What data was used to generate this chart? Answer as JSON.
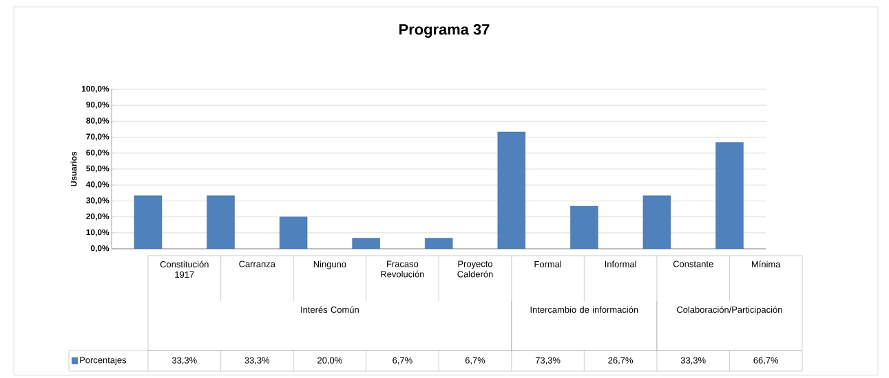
{
  "chart_data": {
    "type": "bar",
    "title": "Programa 37",
    "ylabel": "Usuarios",
    "categories": [
      "Constitución 1917",
      "Carranza",
      "Ninguno",
      "Fracaso Revolución",
      "Proyecto Calderón",
      "Formal",
      "Informal",
      "Constante",
      "Mínima"
    ],
    "series": [
      {
        "name": "Porcentajes",
        "color": "#4f81bd",
        "values": [
          33.3,
          33.3,
          20.0,
          6.7,
          6.7,
          73.3,
          26.7,
          33.3,
          66.7
        ],
        "value_labels": [
          "33,3%",
          "33,3%",
          "20,0%",
          "6,7%",
          "6,7%",
          "73,3%",
          "26,7%",
          "33,3%",
          "66,7%"
        ]
      }
    ],
    "annotations": [
      "Interés Común",
      "Intercambio de información",
      "Colaboración/Participación"
    ],
    "ylim": [
      0,
      100
    ],
    "yticks": [
      {
        "value": 0,
        "label": "0,0%"
      },
      {
        "value": 10,
        "label": "10,0%"
      },
      {
        "value": 20,
        "label": "20,0%"
      },
      {
        "value": 30,
        "label": "30,0%"
      },
      {
        "value": 40,
        "label": "40,0%"
      },
      {
        "value": 50,
        "label": "50,0%"
      },
      {
        "value": 60,
        "label": "60,0%"
      },
      {
        "value": 70,
        "label": "70,0%"
      },
      {
        "value": 80,
        "label": "80,0%"
      },
      {
        "value": 90,
        "label": "90,0%"
      },
      {
        "value": 100,
        "label": "100,0%"
      }
    ],
    "grid": "y",
    "legend": "bottom"
  }
}
